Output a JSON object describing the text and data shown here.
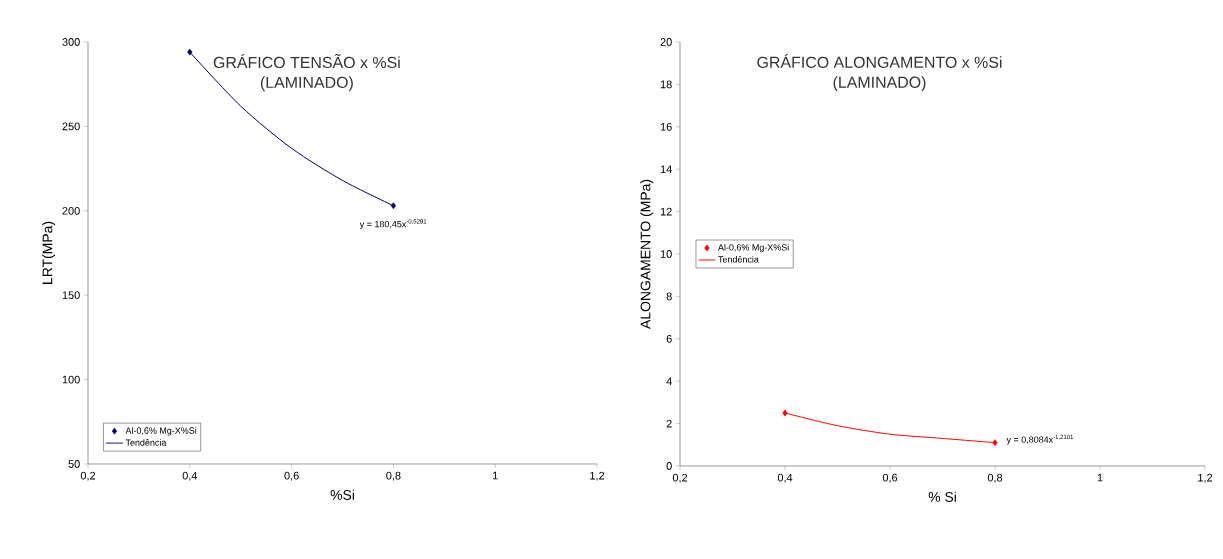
{
  "chart_data": [
    {
      "type": "scatter",
      "title": "GRÁFICO TENSÃO x %Si",
      "subtitle": "(LAMINADO)",
      "xlabel": "%Si",
      "ylabel": "LRT(MPa)",
      "series": [
        {
          "name": "Al-0,6% Mg-X%Si",
          "color": "#000066",
          "marker": "diamond",
          "x": [
            0.4,
            0.8
          ],
          "values": [
            294,
            203
          ]
        },
        {
          "name": "Tendência",
          "type": "line",
          "marker": "none",
          "color": "#000066",
          "x": [
            0.4,
            0.5,
            0.6,
            0.7,
            0.8
          ],
          "values": [
            294,
            262,
            237,
            218,
            203
          ]
        }
      ],
      "annotations": [
        {
          "text": "y = 180,45x$^{-0,5281}$",
          "x": 0.8,
          "y": 203
        }
      ],
      "xlim": [
        0.2,
        1.2
      ],
      "xticks": [
        {
          "value": 0.2,
          "label": "0,2"
        },
        {
          "value": 0.4,
          "label": "0,4"
        },
        {
          "value": 0.6,
          "label": "0,6"
        },
        {
          "value": 0.8,
          "label": "0,8"
        },
        1,
        {
          "value": 1.2,
          "label": "1,2"
        }
      ],
      "ylim": [
        50,
        300
      ],
      "yticks": [
        50,
        100,
        150,
        200,
        250,
        300
      ],
      "grid": false,
      "legend": "bottom left"
    },
    {
      "type": "scatter",
      "title": "GRÁFICO ALONGAMENTO x %Si",
      "subtitle": "(LAMINADO)",
      "xlabel": "% Si",
      "ylabel": "ALONGAMENTO (MPa)",
      "series": [
        {
          "name": "Al-0,6% Mg-X%Si",
          "color": "#ff0000",
          "marker": "diamond",
          "x": [
            0.4,
            0.8
          ],
          "values": [
            2.5,
            1.1
          ]
        },
        {
          "name": "Tendência",
          "type": "line",
          "marker": "none",
          "color": "#ff0000",
          "x": [
            0.4,
            0.5,
            0.6,
            0.7,
            0.8
          ],
          "values": [
            2.5,
            1.9,
            1.5,
            1.3,
            1.1
          ]
        }
      ],
      "annotations": [
        {
          "text": "y = 0,8084x$^{-1,2101}$",
          "x": 0.8,
          "y": 1.1
        }
      ],
      "xlim": [
        0.2,
        1.2
      ],
      "xticks": [
        {
          "value": 0.2,
          "label": "0,2"
        },
        {
          "value": 0.4,
          "label": "0,4"
        },
        {
          "value": 0.6,
          "label": "0,6"
        },
        {
          "value": 0.8,
          "label": "0,8"
        },
        1,
        {
          "value": 1.2,
          "label": "1,2"
        }
      ],
      "ylim": [
        0,
        20
      ],
      "yticks": [
        0,
        2,
        4,
        6,
        8,
        10,
        12,
        14,
        16,
        18,
        20
      ],
      "grid": false,
      "legend": "left"
    }
  ]
}
